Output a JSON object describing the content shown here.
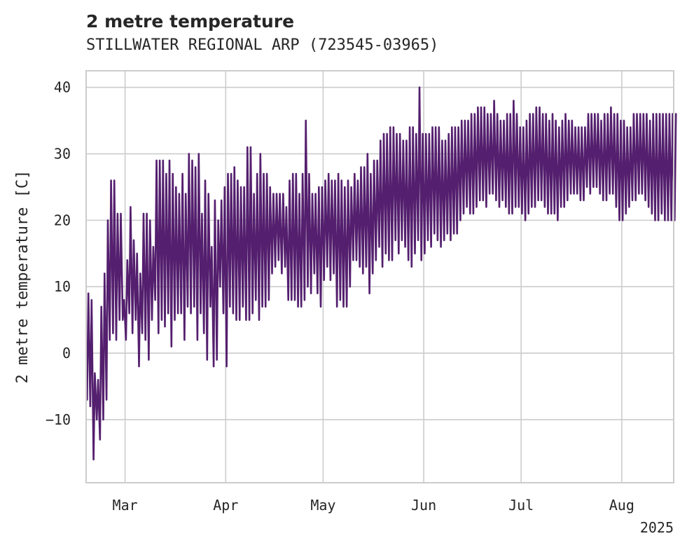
{
  "chart_data": {
    "type": "line",
    "title": "2 metre temperature",
    "subtitle": "STILLWATER REGIONAL ARP (723545-03965)",
    "xlabel": "",
    "ylabel": "2 metre temperature [C]",
    "xlim": [
      "2025-02-17",
      "2025-08-17"
    ],
    "ylim": [
      -19.5,
      42.5
    ],
    "x_ticks": [
      "Mar",
      "Apr",
      "May",
      "Jun",
      "Jul",
      "Aug"
    ],
    "x_tick_dates": [
      "2025-03-01",
      "2025-04-01",
      "2025-05-01",
      "2025-06-01",
      "2025-07-01",
      "2025-08-01"
    ],
    "x_offset_label": "2025",
    "y_ticks": [
      -10,
      0,
      10,
      20,
      30,
      40
    ],
    "grid": true,
    "line_color": "#541f6e",
    "series": [
      {
        "name": "",
        "x": [
          "2025-02-17",
          "2025-02-18",
          "2025-02-19",
          "2025-02-20",
          "2025-02-21",
          "2025-02-22",
          "2025-02-23",
          "2025-02-24",
          "2025-02-25",
          "2025-02-26",
          "2025-02-27",
          "2025-02-28",
          "2025-03-01",
          "2025-03-02",
          "2025-03-03",
          "2025-03-04",
          "2025-03-05",
          "2025-03-06",
          "2025-03-07",
          "2025-03-08",
          "2025-03-09",
          "2025-03-10",
          "2025-03-11",
          "2025-03-12",
          "2025-03-13",
          "2025-03-14",
          "2025-03-15",
          "2025-03-16",
          "2025-03-17",
          "2025-03-18",
          "2025-03-19",
          "2025-03-20",
          "2025-03-21",
          "2025-03-22",
          "2025-03-23",
          "2025-03-24",
          "2025-03-25",
          "2025-03-26",
          "2025-03-27",
          "2025-03-28",
          "2025-03-29",
          "2025-03-30",
          "2025-03-31",
          "2025-04-01",
          "2025-04-02",
          "2025-04-03",
          "2025-04-04",
          "2025-04-05",
          "2025-04-06",
          "2025-04-07",
          "2025-04-08",
          "2025-04-09",
          "2025-04-10",
          "2025-04-11",
          "2025-04-12",
          "2025-04-13",
          "2025-04-14",
          "2025-04-15",
          "2025-04-16",
          "2025-04-17",
          "2025-04-18",
          "2025-04-19",
          "2025-04-20",
          "2025-04-21",
          "2025-04-22",
          "2025-04-23",
          "2025-04-24",
          "2025-04-25",
          "2025-04-26",
          "2025-04-27",
          "2025-04-28",
          "2025-04-29",
          "2025-04-30",
          "2025-05-01",
          "2025-05-02",
          "2025-05-03",
          "2025-05-04",
          "2025-05-05",
          "2025-05-06",
          "2025-05-07",
          "2025-05-08",
          "2025-05-09",
          "2025-05-10",
          "2025-05-11",
          "2025-05-12",
          "2025-05-13",
          "2025-05-14",
          "2025-05-15",
          "2025-05-16",
          "2025-05-17",
          "2025-05-18",
          "2025-05-19",
          "2025-05-20",
          "2025-05-21",
          "2025-05-22",
          "2025-05-23",
          "2025-05-24",
          "2025-05-25",
          "2025-05-26",
          "2025-05-27",
          "2025-05-28",
          "2025-05-29",
          "2025-05-30",
          "2025-05-31",
          "2025-06-01",
          "2025-06-02",
          "2025-06-03",
          "2025-06-04",
          "2025-06-05",
          "2025-06-06",
          "2025-06-07",
          "2025-06-08",
          "2025-06-09",
          "2025-06-10",
          "2025-06-11",
          "2025-06-12",
          "2025-06-13",
          "2025-06-14",
          "2025-06-15",
          "2025-06-16",
          "2025-06-17",
          "2025-06-18",
          "2025-06-19",
          "2025-06-20",
          "2025-06-21",
          "2025-06-22",
          "2025-06-23",
          "2025-06-24",
          "2025-06-25",
          "2025-06-26",
          "2025-06-27",
          "2025-06-28",
          "2025-06-29",
          "2025-06-30",
          "2025-07-01",
          "2025-07-02",
          "2025-07-03",
          "2025-07-04",
          "2025-07-05",
          "2025-07-06",
          "2025-07-07",
          "2025-07-08",
          "2025-07-09",
          "2025-07-10",
          "2025-07-11",
          "2025-07-12",
          "2025-07-13",
          "2025-07-14",
          "2025-07-15",
          "2025-07-16",
          "2025-07-17",
          "2025-07-18",
          "2025-07-19",
          "2025-07-20",
          "2025-07-21",
          "2025-07-22",
          "2025-07-23",
          "2025-07-24",
          "2025-07-25",
          "2025-07-26",
          "2025-07-27",
          "2025-07-28",
          "2025-07-29",
          "2025-07-30",
          "2025-07-31",
          "2025-08-01",
          "2025-08-02",
          "2025-08-03",
          "2025-08-04",
          "2025-08-05",
          "2025-08-06",
          "2025-08-07",
          "2025-08-08",
          "2025-08-09",
          "2025-08-10",
          "2025-08-11",
          "2025-08-12",
          "2025-08-13",
          "2025-08-14",
          "2025-08-15",
          "2025-08-16",
          "2025-08-17"
        ],
        "y_min": [
          -7,
          -8,
          -16,
          -10,
          -13,
          -10,
          -7,
          2,
          3,
          2,
          5,
          5,
          2,
          6,
          3,
          5,
          -2,
          3,
          2,
          -1,
          5,
          8,
          3,
          5,
          4,
          6,
          1,
          5,
          6,
          6,
          2,
          7,
          6,
          7,
          2,
          6,
          3,
          -1,
          7,
          -2,
          -1,
          10,
          6,
          -2,
          7,
          6,
          5,
          5,
          7,
          5,
          5,
          6,
          8,
          5,
          7,
          7,
          8,
          12,
          13,
          14,
          12,
          13,
          8,
          8,
          8,
          7,
          7,
          8,
          10,
          9,
          12,
          9,
          7,
          11,
          13,
          11,
          12,
          7,
          8,
          7,
          7,
          10,
          14,
          14,
          13,
          12,
          13,
          9,
          12,
          14,
          16,
          13,
          15,
          14,
          14,
          17,
          15,
          17,
          16,
          14,
          13,
          15,
          17,
          14,
          15,
          17,
          16,
          18,
          17,
          16,
          17,
          18,
          17,
          18,
          18,
          20,
          21,
          22,
          21,
          21,
          22,
          23,
          23,
          22,
          24,
          24,
          23,
          22,
          23,
          22,
          21,
          21,
          22,
          22,
          21,
          20,
          21,
          22,
          22,
          23,
          23,
          22,
          21,
          21,
          21,
          20,
          22,
          22,
          23,
          24,
          24,
          24,
          23,
          23,
          25,
          24,
          25,
          25,
          24,
          23,
          23,
          24,
          24,
          22,
          20,
          20,
          21,
          22,
          23,
          23,
          24,
          24,
          23,
          22,
          21,
          20,
          20,
          21,
          20,
          20,
          20,
          20,
          20
        ],
        "y_max": [
          9,
          8,
          -3,
          -4,
          7,
          12,
          20,
          26,
          26,
          21,
          21,
          8,
          14,
          22,
          17,
          15,
          12,
          21,
          21,
          20,
          16,
          29,
          29,
          29,
          27,
          29,
          27,
          25,
          24,
          27,
          24,
          30,
          29,
          28,
          30,
          21,
          26,
          24,
          16,
          23,
          20,
          23,
          25,
          27,
          27,
          28,
          26,
          25,
          25,
          31,
          31,
          24,
          27,
          30,
          27,
          27,
          25,
          24,
          24,
          24,
          24,
          22,
          26,
          27,
          27,
          24,
          27,
          35,
          27,
          24,
          24,
          25,
          25,
          26,
          27,
          26,
          26,
          27,
          26,
          25,
          26,
          25,
          27,
          26,
          28,
          28,
          30,
          27,
          29,
          29,
          32,
          33,
          33,
          34,
          34,
          33,
          33,
          32,
          32,
          34,
          34,
          33,
          40,
          33,
          33,
          33,
          34,
          34,
          34,
          32,
          32,
          33,
          34,
          34,
          34,
          35,
          35,
          35,
          36,
          36,
          37,
          37,
          37,
          36,
          36,
          38,
          36,
          35,
          35,
          36,
          36,
          38,
          36,
          34,
          34,
          35,
          36,
          36,
          37,
          37,
          36,
          36,
          35,
          36,
          35,
          34,
          35,
          36,
          35,
          35,
          34,
          34,
          34,
          34,
          36,
          36,
          36,
          36,
          35,
          36,
          36,
          37,
          36,
          36,
          35,
          35,
          34,
          34,
          36,
          36,
          36,
          36,
          36,
          35,
          36,
          36,
          36,
          36,
          36,
          36,
          36,
          36,
          36,
          36,
          36,
          36
        ]
      }
    ]
  }
}
